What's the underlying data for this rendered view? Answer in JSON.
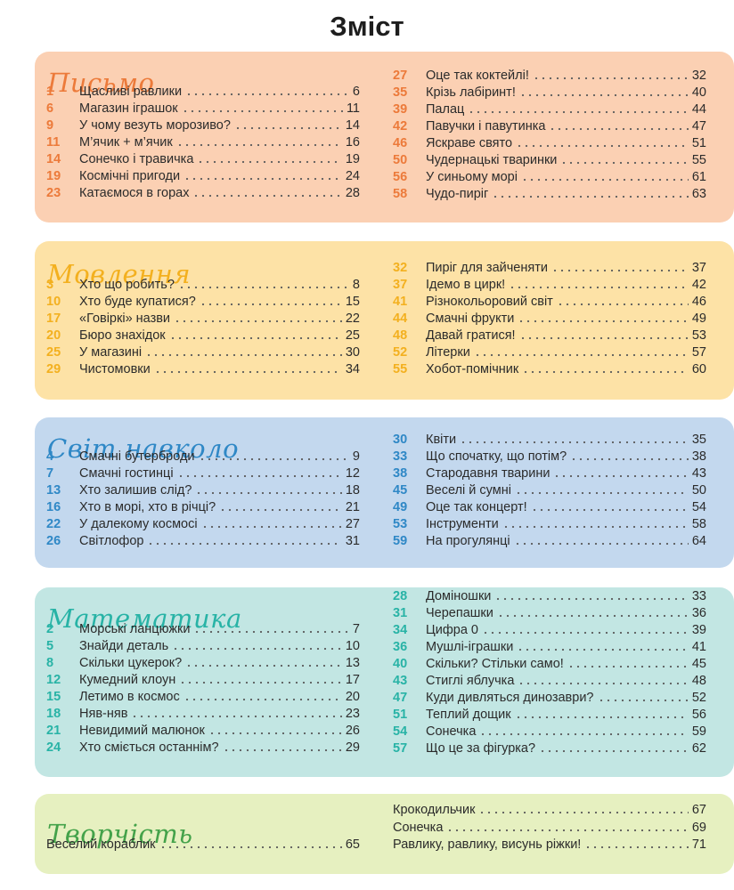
{
  "page_title": "Зміст",
  "sections": [
    {
      "id": "pysmo",
      "title": "Письмо",
      "bg": "#fbd0b3",
      "color": "#ec7a3a",
      "left": [
        {
          "num": "1",
          "title": "Щасливі равлики",
          "page": "6"
        },
        {
          "num": "6",
          "title": "Магазин іграшок",
          "page": "11"
        },
        {
          "num": "9",
          "title": "У чому везуть морозиво?",
          "page": "14"
        },
        {
          "num": "11",
          "title": "М’ячик + м’ячик",
          "page": "16"
        },
        {
          "num": "14",
          "title": "Сонечко і травичка",
          "page": "19"
        },
        {
          "num": "19",
          "title": "Космічні пригоди",
          "page": "24"
        },
        {
          "num": "23",
          "title": "Катаємося в горах",
          "page": "28"
        }
      ],
      "right": [
        {
          "num": "27",
          "title": "Оце так коктейлі!",
          "page": "32"
        },
        {
          "num": "35",
          "title": "Крізь лабіринт!",
          "page": "40"
        },
        {
          "num": "39",
          "title": "Палац",
          "page": "44"
        },
        {
          "num": "42",
          "title": "Павучки і павутинка",
          "page": "47"
        },
        {
          "num": "46",
          "title": "Яскраве свято",
          "page": "51"
        },
        {
          "num": "50",
          "title": "Чудернацькі тваринки",
          "page": "55"
        },
        {
          "num": "56",
          "title": "У синьому морі",
          "page": "61"
        },
        {
          "num": "58",
          "title": "Чудо-пиріг",
          "page": "63"
        }
      ]
    },
    {
      "id": "movlennia",
      "title": "Мовлення",
      "bg": "#fde2a6",
      "color": "#f3b01f",
      "left": [
        {
          "num": "3",
          "title": "Хто що робить?",
          "page": "8"
        },
        {
          "num": "10",
          "title": "Хто буде купатися?",
          "page": "15"
        },
        {
          "num": "17",
          "title": "«Говіркі» назви",
          "page": "22"
        },
        {
          "num": "20",
          "title": "Бюро знахідок",
          "page": "25"
        },
        {
          "num": "25",
          "title": "У магазині",
          "page": "30"
        },
        {
          "num": "29",
          "title": "Чистомовки",
          "page": "34"
        }
      ],
      "right": [
        {
          "num": "32",
          "title": "Пиріг для зайченяти",
          "page": "37"
        },
        {
          "num": "37",
          "title": "Ідемо в цирк!",
          "page": "42"
        },
        {
          "num": "41",
          "title": "Різнокольоровий світ",
          "page": "46"
        },
        {
          "num": "44",
          "title": "Смачні фрукти",
          "page": "49"
        },
        {
          "num": "48",
          "title": "Давай гратися!",
          "page": "53"
        },
        {
          "num": "52",
          "title": "Літерки",
          "page": "57"
        },
        {
          "num": "55",
          "title": "Хобот-помічник",
          "page": "60"
        }
      ]
    },
    {
      "id": "svit",
      "title": "Світ навколо",
      "bg": "#c3d8ee",
      "color": "#2f88c6",
      "left": [
        {
          "num": "4",
          "title": "Смачні бутерброди",
          "page": "9"
        },
        {
          "num": "7",
          "title": "Смачні гостинці",
          "page": "12"
        },
        {
          "num": "13",
          "title": "Хто залишив слід?",
          "page": "18"
        },
        {
          "num": "16",
          "title": "Хто в морі, хто в річці?",
          "page": "21"
        },
        {
          "num": "22",
          "title": "У далекому космосі",
          "page": "27"
        },
        {
          "num": "26",
          "title": "Світлофор",
          "page": "31"
        }
      ],
      "right": [
        {
          "num": "30",
          "title": "Квіти",
          "page": "35"
        },
        {
          "num": "33",
          "title": "Що спочатку, що потім?",
          "page": "38"
        },
        {
          "num": "38",
          "title": "Стародавня тварини",
          "page": "43"
        },
        {
          "num": "45",
          "title": "Веселі й сумні",
          "page": "50"
        },
        {
          "num": "49",
          "title": "Оце так концерт!",
          "page": "54"
        },
        {
          "num": "53",
          "title": "Інструменти",
          "page": "58"
        },
        {
          "num": "59",
          "title": "На прогулянці",
          "page": "64"
        }
      ]
    },
    {
      "id": "matematyka",
      "title": "Математика",
      "bg": "#c2e6e3",
      "color": "#28b3a6",
      "left": [
        {
          "num": "2",
          "title": "Морські ланцюжки",
          "page": "7"
        },
        {
          "num": "5",
          "title": "Знайди деталь",
          "page": "10"
        },
        {
          "num": "8",
          "title": "Скільки цукерок?",
          "page": "13"
        },
        {
          "num": "12",
          "title": "Кумедний клоун",
          "page": "17"
        },
        {
          "num": "15",
          "title": "Летимо в космос",
          "page": "20"
        },
        {
          "num": "18",
          "title": "Няв-няв",
          "page": "23"
        },
        {
          "num": "21",
          "title": "Невидимий малюнок",
          "page": "26"
        },
        {
          "num": "24",
          "title": "Хто сміється останнім?",
          "page": "29"
        }
      ],
      "right": [
        {
          "num": "28",
          "title": "Доміношки",
          "page": "33"
        },
        {
          "num": "31",
          "title": "Черепашки",
          "page": "36"
        },
        {
          "num": "34",
          "title": "Цифра 0",
          "page": "39"
        },
        {
          "num": "36",
          "title": "Мушлі-іграшки",
          "page": "41"
        },
        {
          "num": "40",
          "title": "Скільки? Стільки само!",
          "page": "45"
        },
        {
          "num": "43",
          "title": "Стиглі яблучка",
          "page": "48"
        },
        {
          "num": "47",
          "title": "Куди дивляться динозаври?",
          "page": "52"
        },
        {
          "num": "51",
          "title": "Теплий дощик",
          "page": "56"
        },
        {
          "num": "54",
          "title": "Сонечка",
          "page": "59"
        },
        {
          "num": "57",
          "title": "Що це за фігурка?",
          "page": "62"
        }
      ]
    },
    {
      "id": "tvorchist",
      "title": "Творчість",
      "bg": "#e6f0c0",
      "color": "#44a24a",
      "left": [
        {
          "num": "",
          "title": "Веселий кораблик",
          "page": "65"
        }
      ],
      "right": [
        {
          "num": "",
          "title": "Крокодильчик",
          "page": "67"
        },
        {
          "num": "",
          "title": "Сонечка",
          "page": "69"
        },
        {
          "num": "",
          "title": "Равлику, равлику, висунь ріжки!",
          "page": "71"
        }
      ]
    }
  ]
}
